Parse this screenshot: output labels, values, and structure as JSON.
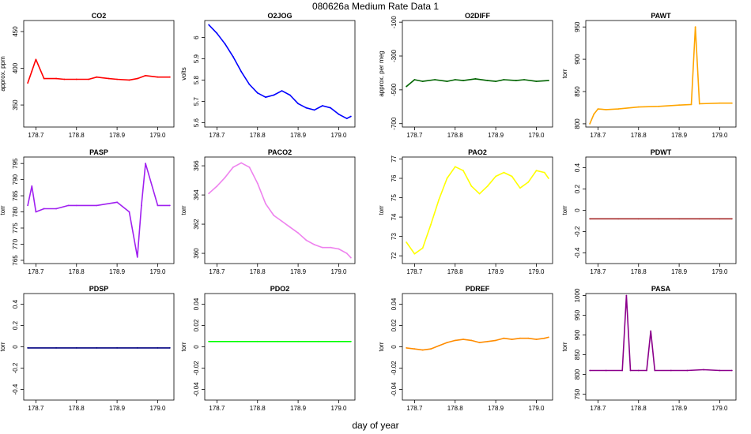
{
  "figure": {
    "title": "080626a   Medium Rate Data 1",
    "xlabel": "day of year"
  },
  "chart_data": [
    {
      "type": "line",
      "title": "CO2",
      "ylabel": "approx. ppm",
      "color": "#ff0000",
      "xlim": [
        178.67,
        179.04
      ],
      "ylim": [
        320,
        465
      ],
      "xticks": [
        "178.7",
        "178.8",
        "178.9",
        "179.0"
      ],
      "yticks": [
        350,
        400,
        450
      ],
      "x": [
        178.68,
        178.69,
        178.7,
        178.72,
        178.75,
        178.77,
        178.8,
        178.83,
        178.85,
        178.88,
        178.9,
        178.93,
        178.95,
        178.97,
        179.0,
        179.03
      ],
      "values": [
        380,
        396,
        412,
        386,
        386,
        385,
        385,
        385,
        388,
        386,
        385,
        384,
        386,
        390,
        388,
        388
      ]
    },
    {
      "type": "line",
      "title": "O2JOG",
      "ylabel": "volts",
      "color": "#0000ff",
      "xlim": [
        178.67,
        179.04
      ],
      "ylim": [
        5.58,
        6.08
      ],
      "xticks": [
        "178.7",
        "178.8",
        "178.9",
        "179.0"
      ],
      "yticks": [
        5.6,
        5.7,
        5.8,
        5.9,
        6.0
      ],
      "x": [
        178.68,
        178.7,
        178.72,
        178.74,
        178.76,
        178.78,
        178.8,
        178.82,
        178.84,
        178.86,
        178.88,
        178.9,
        178.92,
        178.94,
        178.96,
        178.98,
        179.0,
        179.02,
        179.03
      ],
      "values": [
        6.06,
        6.02,
        5.97,
        5.91,
        5.84,
        5.78,
        5.74,
        5.72,
        5.73,
        5.75,
        5.73,
        5.69,
        5.67,
        5.66,
        5.68,
        5.67,
        5.64,
        5.62,
        5.63
      ]
    },
    {
      "type": "line",
      "title": "O2DIFF",
      "ylabel": "approx. per meg",
      "color": "#006400",
      "xlim": [
        178.67,
        179.04
      ],
      "ylim": [
        -720,
        -90
      ],
      "xticks": [
        "178.7",
        "178.8",
        "178.9",
        "179.0"
      ],
      "yticks": [
        -700,
        -500,
        -300,
        -100
      ],
      "x": [
        178.68,
        178.7,
        178.72,
        178.75,
        178.78,
        178.8,
        178.82,
        178.85,
        178.88,
        178.9,
        178.92,
        178.95,
        178.97,
        179.0,
        179.03
      ],
      "values": [
        -480,
        -440,
        -450,
        -440,
        -450,
        -440,
        -445,
        -435,
        -445,
        -450,
        -440,
        -445,
        -440,
        -450,
        -445
      ]
    },
    {
      "type": "line",
      "title": "PAWT",
      "ylabel": "torr",
      "color": "#ffa500",
      "xlim": [
        178.67,
        179.04
      ],
      "ylim": [
        795,
        960
      ],
      "xticks": [
        "178.7",
        "178.8",
        "178.9",
        "179.0"
      ],
      "yticks": [
        800,
        850,
        900,
        950
      ],
      "x": [
        178.68,
        178.69,
        178.7,
        178.72,
        178.75,
        178.8,
        178.85,
        178.9,
        178.93,
        178.94,
        178.95,
        179.0,
        179.03
      ],
      "values": [
        800,
        815,
        823,
        822,
        823,
        826,
        827,
        829,
        830,
        950,
        831,
        832,
        832
      ]
    },
    {
      "type": "line",
      "title": "PASP",
      "ylabel": "torr",
      "color": "#a020f0",
      "xlim": [
        178.67,
        179.04
      ],
      "ylim": [
        764,
        797
      ],
      "xticks": [
        "178.7",
        "178.8",
        "178.9",
        "179.0"
      ],
      "yticks": [
        765,
        770,
        775,
        780,
        785,
        790,
        795
      ],
      "x": [
        178.68,
        178.69,
        178.7,
        178.72,
        178.75,
        178.78,
        178.8,
        178.85,
        178.9,
        178.93,
        178.95,
        178.96,
        178.97,
        179.0,
        179.03
      ],
      "values": [
        782,
        788,
        780,
        781,
        781,
        782,
        782,
        782,
        783,
        780,
        766,
        782,
        795,
        782,
        782
      ]
    },
    {
      "type": "line",
      "title": "PACO2",
      "ylabel": "torr",
      "color": "#ee82ee",
      "xlim": [
        178.67,
        179.04
      ],
      "ylim": [
        359.3,
        366.6
      ],
      "xticks": [
        "178.7",
        "178.8",
        "178.9",
        "179.0"
      ],
      "yticks": [
        360,
        362,
        364,
        366
      ],
      "x": [
        178.68,
        178.7,
        178.72,
        178.74,
        178.76,
        178.78,
        178.8,
        178.82,
        178.84,
        178.86,
        178.88,
        178.9,
        178.92,
        178.94,
        178.96,
        178.98,
        179.0,
        179.02,
        179.03
      ],
      "values": [
        364.1,
        364.6,
        365.2,
        365.9,
        366.2,
        365.9,
        364.8,
        363.4,
        362.6,
        362.2,
        361.8,
        361.4,
        360.9,
        360.6,
        360.4,
        360.4,
        360.3,
        360.0,
        359.7
      ]
    },
    {
      "type": "line",
      "title": "PAO2",
      "ylabel": "torr",
      "color": "#ffff00",
      "xlim": [
        178.67,
        179.04
      ],
      "ylim": [
        71.6,
        77.1
      ],
      "xticks": [
        "178.7",
        "178.8",
        "178.9",
        "179.0"
      ],
      "yticks": [
        72,
        73,
        74,
        75,
        76,
        77
      ],
      "x": [
        178.68,
        178.7,
        178.72,
        178.74,
        178.76,
        178.78,
        178.8,
        178.82,
        178.84,
        178.86,
        178.88,
        178.9,
        178.92,
        178.94,
        178.96,
        178.98,
        179.0,
        179.02,
        179.03
      ],
      "values": [
        72.7,
        72.1,
        72.4,
        73.6,
        74.9,
        76.0,
        76.6,
        76.4,
        75.6,
        75.2,
        75.6,
        76.1,
        76.3,
        76.1,
        75.5,
        75.8,
        76.4,
        76.3,
        76.0
      ]
    },
    {
      "type": "line",
      "title": "PDWT",
      "ylabel": "torr",
      "color": "#a52a2a",
      "xlim": [
        178.67,
        179.04
      ],
      "ylim": [
        -0.5,
        0.5
      ],
      "xticks": [
        "178.7",
        "178.8",
        "178.9",
        "179.0"
      ],
      "yticks": [
        -0.4,
        -0.2,
        0.0,
        0.2,
        0.4
      ],
      "x": [
        178.68,
        178.75,
        178.8,
        178.85,
        178.9,
        178.95,
        179.0,
        179.03
      ],
      "values": [
        -0.08,
        -0.08,
        -0.08,
        -0.08,
        -0.08,
        -0.08,
        -0.08,
        -0.08
      ]
    },
    {
      "type": "line",
      "title": "PDSP",
      "ylabel": "torr",
      "color": "#000080",
      "xlim": [
        178.67,
        179.04
      ],
      "ylim": [
        -0.5,
        0.5
      ],
      "xticks": [
        "178.7",
        "178.8",
        "178.9",
        "179.0"
      ],
      "yticks": [
        -0.4,
        -0.2,
        0.0,
        0.2,
        0.4
      ],
      "x": [
        178.68,
        178.75,
        178.8,
        178.85,
        178.9,
        178.95,
        179.0,
        179.03
      ],
      "values": [
        -0.01,
        -0.01,
        -0.01,
        -0.01,
        -0.01,
        -0.01,
        -0.01,
        -0.01
      ]
    },
    {
      "type": "line",
      "title": "PDO2",
      "ylabel": "torr",
      "color": "#00ff00",
      "xlim": [
        178.67,
        179.04
      ],
      "ylim": [
        -0.05,
        0.05
      ],
      "xticks": [
        "178.7",
        "178.8",
        "178.9",
        "179.0"
      ],
      "yticks": [
        -0.04,
        -0.02,
        0.0,
        0.02,
        0.04
      ],
      "x": [
        178.68,
        178.75,
        178.8,
        178.85,
        178.9,
        178.95,
        179.0,
        179.03
      ],
      "values": [
        0.005,
        0.005,
        0.005,
        0.005,
        0.005,
        0.005,
        0.005,
        0.005
      ]
    },
    {
      "type": "line",
      "title": "PDREF",
      "ylabel": "torr",
      "color": "#ff8c00",
      "xlim": [
        178.67,
        179.04
      ],
      "ylim": [
        -0.05,
        0.05
      ],
      "xticks": [
        "178.7",
        "178.8",
        "178.9",
        "179.0"
      ],
      "yticks": [
        -0.04,
        -0.02,
        0.0,
        0.02,
        0.04
      ],
      "x": [
        178.68,
        178.7,
        178.72,
        178.74,
        178.76,
        178.78,
        178.8,
        178.82,
        178.84,
        178.86,
        178.88,
        178.9,
        178.92,
        178.94,
        178.96,
        178.98,
        179.0,
        179.02,
        179.03
      ],
      "values": [
        -0.001,
        -0.002,
        -0.003,
        -0.002,
        0.001,
        0.004,
        0.006,
        0.007,
        0.006,
        0.004,
        0.005,
        0.006,
        0.008,
        0.007,
        0.008,
        0.008,
        0.007,
        0.008,
        0.009
      ]
    },
    {
      "type": "line",
      "title": "PASA",
      "ylabel": "torr",
      "color": "#8b008b",
      "xlim": [
        178.67,
        179.04
      ],
      "ylim": [
        735,
        1005
      ],
      "xticks": [
        "178.7",
        "178.8",
        "178.9",
        "179.0"
      ],
      "yticks": [
        750,
        800,
        850,
        900,
        950,
        1000
      ],
      "x": [
        178.68,
        178.72,
        178.76,
        178.77,
        178.78,
        178.8,
        178.82,
        178.83,
        178.84,
        178.88,
        178.92,
        178.96,
        179.0,
        179.03
      ],
      "values": [
        810,
        810,
        810,
        1000,
        810,
        810,
        810,
        910,
        810,
        810,
        810,
        812,
        810,
        810
      ]
    }
  ]
}
